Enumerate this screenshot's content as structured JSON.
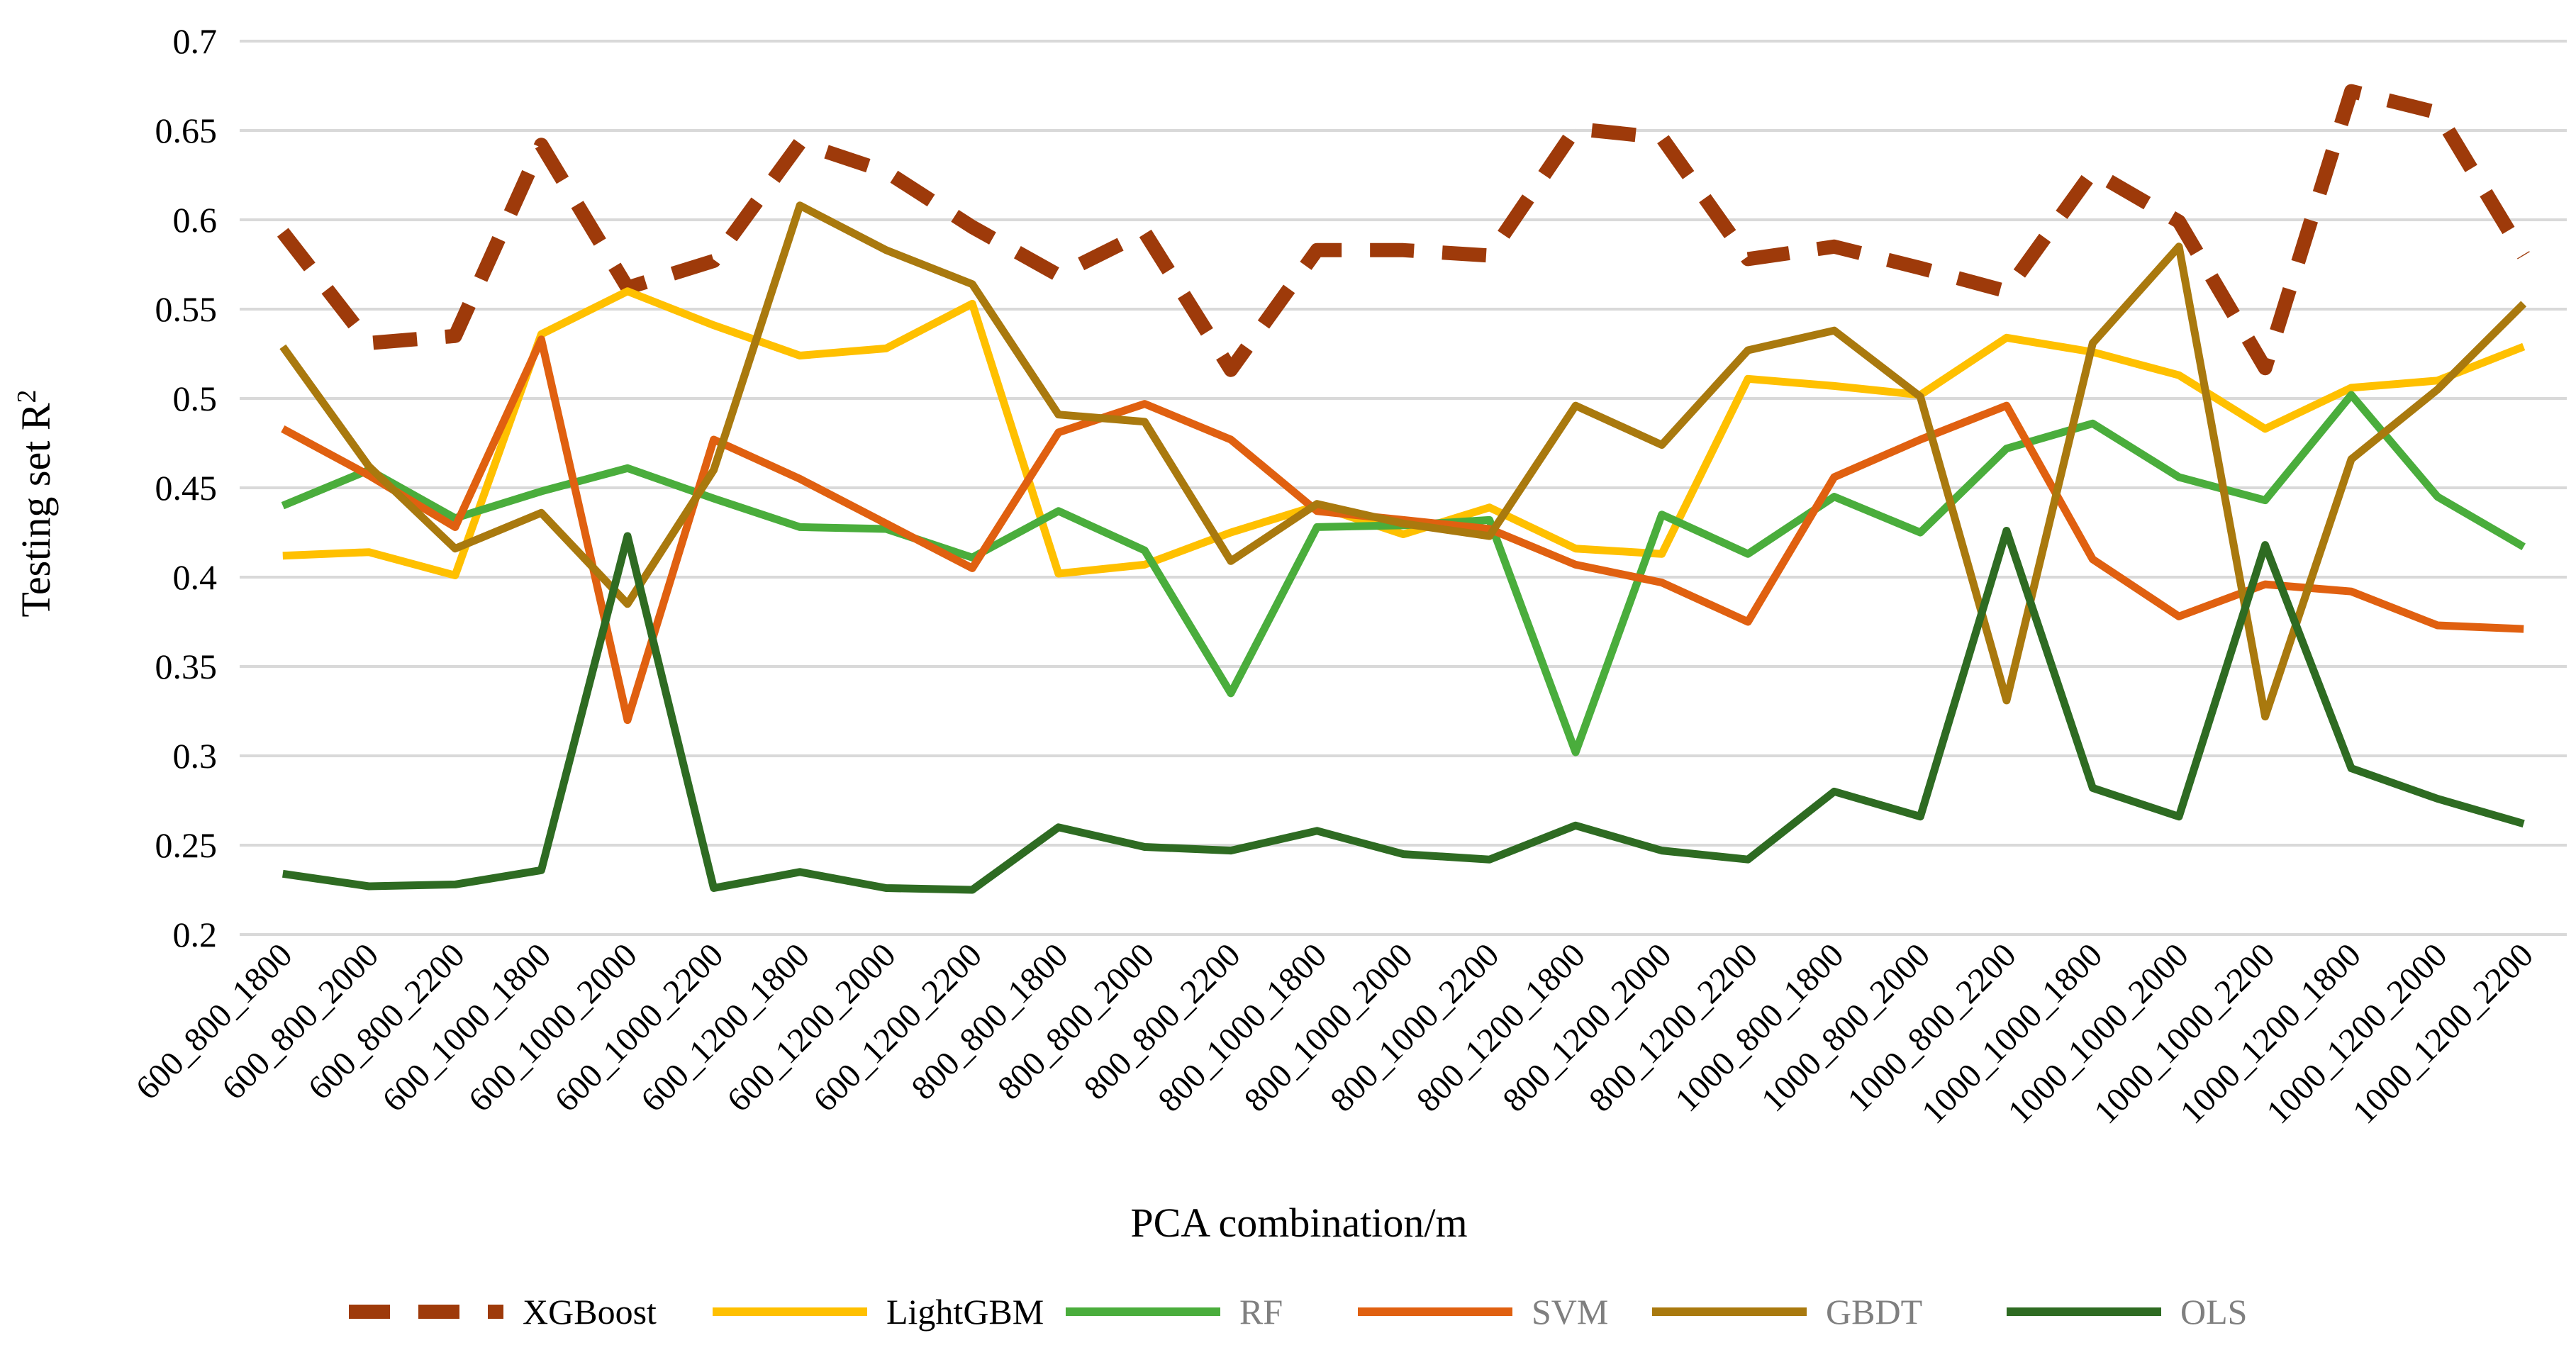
{
  "chart_data": {
    "type": "line",
    "title": "",
    "xlabel": "PCA combination/m",
    "ylabel": "Testing set R",
    "ylabel_superscript": "2",
    "ylim": [
      0.2,
      0.7
    ],
    "yticks": [
      "0.2",
      "0.25",
      "0.3",
      "0.35",
      "0.4",
      "0.45",
      "0.5",
      "0.55",
      "0.6",
      "0.65",
      "0.7"
    ],
    "grid": true,
    "legend_position": "bottom",
    "categories": [
      "600_800_1800",
      "600_800_2000",
      "600_800_2200",
      "600_1000_1800",
      "600_1000_2000",
      "600_1000_2200",
      "600_1200_1800",
      "600_1200_2000",
      "600_1200_2200",
      "800_800_1800",
      "800_800_2000",
      "800_800_2200",
      "800_1000_1800",
      "800_1000_2000",
      "800_1000_2200",
      "800_1200_1800",
      "800_1200_2000",
      "800_1200_2200",
      "1000_800_1800",
      "1000_800_2000",
      "1000_800_2200",
      "1000_1000_1800",
      "1000_1000_2000",
      "1000_1000_2200",
      "1000_1200_1800",
      "1000_1200_2000",
      "1000_1200_2200"
    ],
    "series": [
      {
        "name": "XGBoost",
        "color": "#9e3a0a",
        "dashed": true,
        "label_muted": false,
        "values": [
          0.593,
          0.531,
          0.535,
          0.642,
          0.562,
          0.577,
          0.643,
          0.627,
          0.596,
          0.569,
          0.593,
          0.516,
          0.583,
          0.583,
          0.58,
          0.651,
          0.646,
          0.578,
          0.585,
          0.573,
          0.56,
          0.627,
          0.599,
          0.517,
          0.672,
          0.66,
          0.58
        ]
      },
      {
        "name": "LightGBM",
        "color": "#ffc000",
        "dashed": false,
        "label_muted": false,
        "values": [
          0.412,
          0.414,
          0.401,
          0.536,
          0.56,
          0.541,
          0.524,
          0.528,
          0.553,
          0.402,
          0.407,
          0.425,
          0.44,
          0.424,
          0.439,
          0.416,
          0.413,
          0.511,
          0.507,
          0.502,
          0.534,
          0.526,
          0.513,
          0.483,
          0.506,
          0.51,
          0.529
        ]
      },
      {
        "name": "RF",
        "color": "#4aad3c",
        "dashed": false,
        "label_muted": true,
        "values": [
          0.44,
          0.46,
          0.433,
          0.448,
          0.461,
          0.444,
          0.428,
          0.427,
          0.411,
          0.437,
          0.415,
          0.335,
          0.428,
          0.429,
          0.432,
          0.302,
          0.435,
          0.413,
          0.445,
          0.425,
          0.472,
          0.486,
          0.456,
          0.443,
          0.502,
          0.445,
          0.417
        ]
      },
      {
        "name": "SVM",
        "color": "#e06010",
        "dashed": false,
        "label_muted": true,
        "values": [
          0.483,
          0.457,
          0.428,
          0.533,
          0.32,
          0.477,
          0.455,
          0.43,
          0.405,
          0.481,
          0.497,
          0.477,
          0.437,
          0.432,
          0.427,
          0.407,
          0.397,
          0.375,
          0.456,
          0.477,
          0.496,
          0.41,
          0.378,
          0.396,
          0.392,
          0.373,
          0.371
        ]
      },
      {
        "name": "GBDT",
        "color": "#a9790e",
        "dashed": false,
        "label_muted": true,
        "values": [
          0.529,
          0.462,
          0.416,
          0.436,
          0.385,
          0.46,
          0.608,
          0.583,
          0.564,
          0.491,
          0.487,
          0.409,
          0.441,
          0.43,
          0.423,
          0.496,
          0.474,
          0.527,
          0.538,
          0.501,
          0.331,
          0.531,
          0.585,
          0.322,
          0.466,
          0.505,
          0.553
        ]
      },
      {
        "name": "OLS",
        "color": "#2e6b22",
        "dashed": false,
        "label_muted": true,
        "values": [
          0.234,
          0.227,
          0.228,
          0.236,
          0.423,
          0.226,
          0.235,
          0.226,
          0.225,
          0.26,
          0.249,
          0.247,
          0.258,
          0.245,
          0.242,
          0.261,
          0.247,
          0.242,
          0.28,
          0.266,
          0.426,
          0.282,
          0.266,
          0.418,
          0.293,
          0.276,
          0.262
        ]
      }
    ]
  }
}
